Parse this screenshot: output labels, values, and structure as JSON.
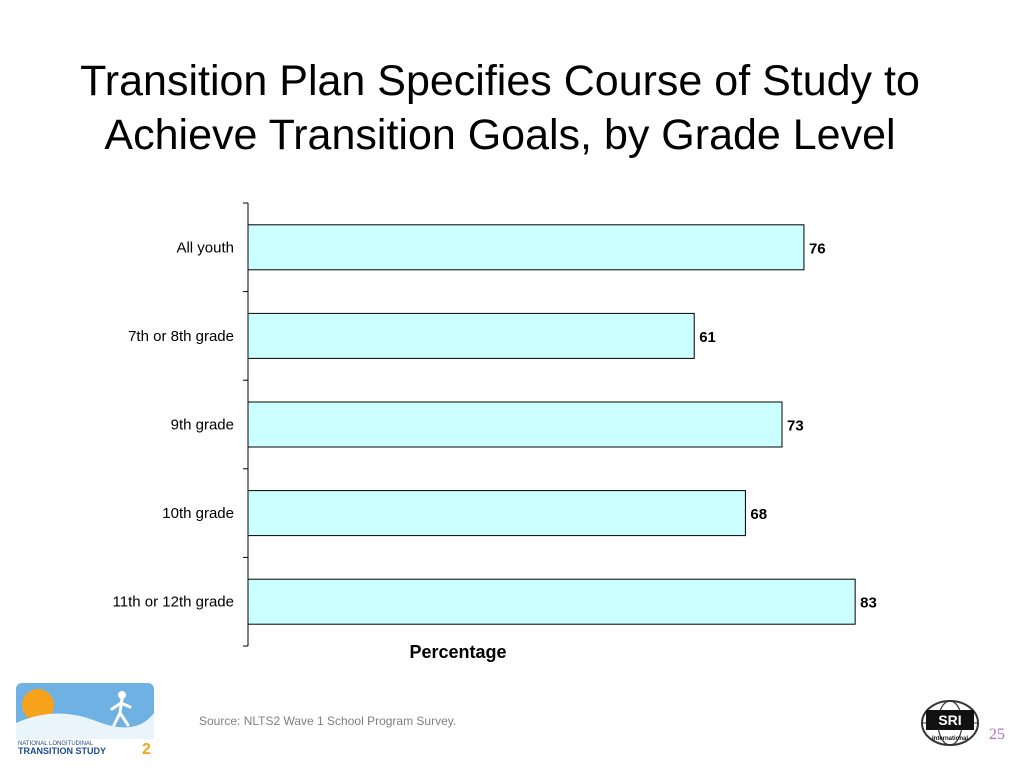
{
  "slide": {
    "title_line1": "Transition Plan Specifies Course of Study to",
    "title_line2": "Achieve Transition Goals, by Grade Level",
    "source": "Source: NLTS2 Wave 1 School Program Survey.",
    "page_number": "25",
    "logo_left_text1": "NATIONAL LONGITUDINAL",
    "logo_left_text2": "TRANSITION STUDY",
    "logo_left_num": "2",
    "logo_right_text": "SRI",
    "logo_right_sub": "International",
    "colors": {
      "bar_fill": "#ccffff",
      "bar_stroke": "#000000",
      "page_number": "#b36bd6",
      "source_text": "#7f7f7f"
    }
  },
  "chart_data": {
    "type": "bar",
    "orientation": "horizontal",
    "categories": [
      "All youth",
      "7th or 8th grade",
      "9th grade",
      "10th grade",
      "11th or 12th grade"
    ],
    "values": [
      76,
      61,
      73,
      68,
      83
    ],
    "xlabel": "Percentage",
    "xlim": [
      0,
      100
    ],
    "data_labels": true,
    "grid": false
  }
}
